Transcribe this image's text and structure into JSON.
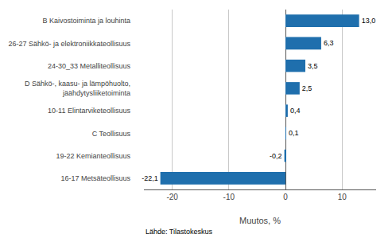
{
  "chart_data": {
    "type": "bar",
    "orientation": "horizontal",
    "categories": [
      "16-17 Metsäteollisuus",
      "19-22 Kemianteollisuus",
      "C Teollisuus",
      "10-11 Elintarviketeollisuus",
      "D Sähkö-, kaasu- ja lämpöhuolto,\njäähdytysliiketoiminta",
      "24-30_33 Metalliteollisuus",
      "26-27 Sähkö- ja elektroniikkateollisuus",
      "B Kaivostoiminta ja louhinta"
    ],
    "values": [
      -22.1,
      -0.2,
      0.1,
      0.4,
      2.5,
      3.5,
      6.3,
      13.0
    ],
    "value_labels": [
      "-22,1",
      "-0,2",
      "0,1",
      "0,4",
      "2,5",
      "3,5",
      "6,3",
      "13,0"
    ],
    "data_labels": true,
    "color": "#1f6fad",
    "xlabel": "Muutos, %",
    "xlim": [
      -25,
      16
    ],
    "xticks": [
      -20,
      -10,
      0,
      10
    ],
    "grid": true,
    "annotations": [
      "Lähde: Tilastokeskus"
    ]
  }
}
